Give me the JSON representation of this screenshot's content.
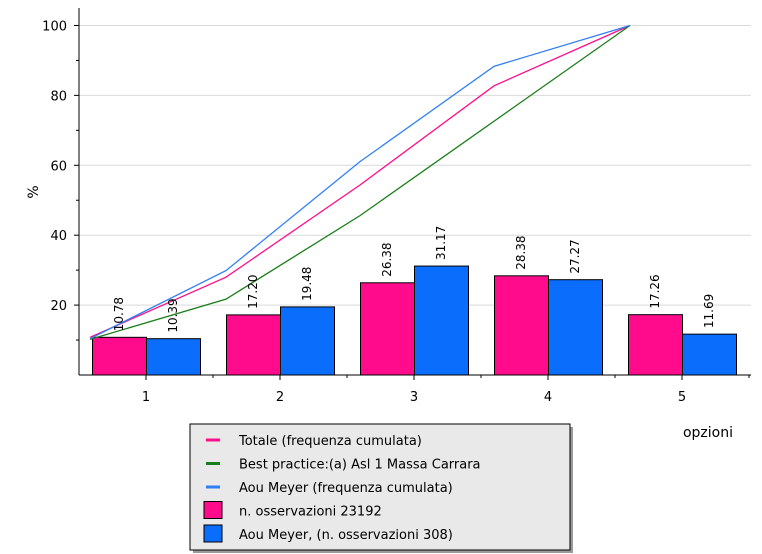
{
  "chart_data": {
    "type": "bar",
    "xlabel": "opzioni",
    "ylabel": "%",
    "categories": [
      "1",
      "2",
      "3",
      "4",
      "5"
    ],
    "ylim": [
      0,
      105
    ],
    "yticks": [
      20,
      40,
      60,
      80,
      100
    ],
    "grid": "horizontal",
    "bar_series": [
      {
        "name": "n. osservazioni 23192",
        "color": "#ff0b8c",
        "values": [
          10.78,
          17.2,
          26.38,
          28.38,
          17.26
        ],
        "labels": [
          "10.78",
          "17.20",
          "26.38",
          "28.38",
          "17.26"
        ]
      },
      {
        "name": "Aou Meyer, (n. osservazioni 308)",
        "color": "#0b6dfb",
        "values": [
          10.39,
          19.48,
          31.17,
          27.27,
          11.69
        ],
        "labels": [
          "10.39",
          "19.48",
          "31.17",
          "27.27",
          "11.69"
        ]
      }
    ],
    "line_series": [
      {
        "name": "Totale (frequenza cumulata)",
        "color": "#ff0b8c",
        "values": [
          10.78,
          27.98,
          54.36,
          82.74,
          100
        ]
      },
      {
        "name": "Best practice:(a) Asl 1 Massa Carrara",
        "color": "#197e19",
        "values": [
          10.2,
          21.7,
          45.6,
          72.6,
          100
        ]
      },
      {
        "name": "Aou Meyer (frequenza cumulata)",
        "color": "#2f7ff5",
        "values": [
          10.39,
          29.87,
          61.04,
          88.31,
          100
        ]
      }
    ],
    "legend": {
      "position": "bottom",
      "entries": [
        {
          "label": "Totale (frequenza cumulata)",
          "kind": "line",
          "color": "#ff0b8c"
        },
        {
          "label": "Best practice:(a) Asl 1 Massa Carrara",
          "kind": "line",
          "color": "#197e19"
        },
        {
          "label": "Aou Meyer (frequenza cumulata)",
          "kind": "line",
          "color": "#2f7ff5"
        },
        {
          "label": "n. osservazioni 23192",
          "kind": "box",
          "color": "#ff0b8c"
        },
        {
          "label": "Aou Meyer, (n. osservazioni 308)",
          "kind": "box",
          "color": "#0b6dfb"
        }
      ]
    }
  }
}
